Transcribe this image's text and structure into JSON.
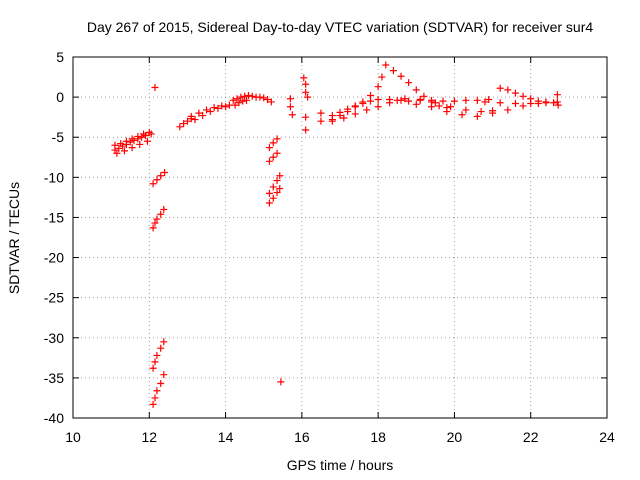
{
  "chart_data": {
    "type": "scatter",
    "title": "Day 267 of 2015, Sidereal Day-to-day VTEC variation (SDTVAR) for receiver sur4",
    "xlabel": "GPS time / hours",
    "ylabel": "SDTVAR / TECUs",
    "xlim": [
      10,
      24
    ],
    "ylim": [
      -40,
      5
    ],
    "xticks": [
      10,
      12,
      14,
      16,
      18,
      20,
      22,
      24
    ],
    "yticks": [
      5,
      0,
      -5,
      -10,
      -15,
      -20,
      -25,
      -30,
      -35,
      -40
    ],
    "grid": true,
    "marker": "plus",
    "color": "#ff0000",
    "series": [
      {
        "points": [
          [
            11.1,
            -6.6
          ],
          [
            11.2,
            -6.4
          ],
          [
            11.3,
            -6.1
          ],
          [
            11.4,
            -5.9
          ],
          [
            11.5,
            -5.6
          ],
          [
            11.6,
            -5.4
          ],
          [
            11.7,
            -5.2
          ],
          [
            11.8,
            -5.0
          ],
          [
            11.9,
            -4.8
          ],
          [
            12.05,
            -4.6
          ],
          [
            11.1,
            -6.0
          ],
          [
            11.25,
            -5.8
          ],
          [
            11.4,
            -5.5
          ],
          [
            11.55,
            -5.2
          ],
          [
            11.7,
            -4.9
          ],
          [
            11.85,
            -4.6
          ],
          [
            12.0,
            -4.4
          ],
          [
            11.15,
            -7.0
          ],
          [
            11.35,
            -6.7
          ],
          [
            11.55,
            -6.3
          ],
          [
            11.75,
            -5.9
          ],
          [
            11.95,
            -5.5
          ],
          [
            12.15,
            1.2
          ],
          [
            12.1,
            -10.8
          ],
          [
            12.2,
            -10.3
          ],
          [
            12.3,
            -9.8
          ],
          [
            12.4,
            -9.4
          ],
          [
            12.1,
            -16.3
          ],
          [
            12.15,
            -15.7
          ],
          [
            12.2,
            -15.2
          ],
          [
            12.3,
            -14.6
          ],
          [
            12.38,
            -14.0
          ],
          [
            12.1,
            -33.8
          ],
          [
            12.15,
            -33.0
          ],
          [
            12.2,
            -32.2
          ],
          [
            12.3,
            -31.3
          ],
          [
            12.38,
            -30.5
          ],
          [
            12.1,
            -38.3
          ],
          [
            12.15,
            -37.5
          ],
          [
            12.2,
            -36.6
          ],
          [
            12.3,
            -35.7
          ],
          [
            12.38,
            -34.6
          ],
          [
            12.8,
            -3.7
          ],
          [
            12.9,
            -3.3
          ],
          [
            13.0,
            -3.0
          ],
          [
            13.1,
            -2.7
          ],
          [
            13.1,
            -2.4
          ],
          [
            13.3,
            -2.0
          ],
          [
            13.5,
            -1.6
          ],
          [
            13.7,
            -1.3
          ],
          [
            13.9,
            -1.1
          ],
          [
            14.1,
            -1.0
          ],
          [
            13.2,
            -2.8
          ],
          [
            13.4,
            -2.3
          ],
          [
            13.6,
            -1.8
          ],
          [
            13.8,
            -1.4
          ],
          [
            14.0,
            -1.2
          ],
          [
            14.2,
            -0.4
          ],
          [
            14.3,
            -0.2
          ],
          [
            14.4,
            0.0
          ],
          [
            14.5,
            0.1
          ],
          [
            14.6,
            0.2
          ],
          [
            14.7,
            0.1
          ],
          [
            14.8,
            0.0
          ],
          [
            14.9,
            0.0
          ],
          [
            15.0,
            -0.1
          ],
          [
            15.1,
            -0.3
          ],
          [
            15.2,
            -0.6
          ],
          [
            14.25,
            -1.0
          ],
          [
            14.35,
            -0.7
          ],
          [
            14.45,
            -0.5
          ],
          [
            14.55,
            -0.4
          ],
          [
            15.15,
            -6.3
          ],
          [
            15.25,
            -5.7
          ],
          [
            15.35,
            -5.2
          ],
          [
            15.15,
            -8.0
          ],
          [
            15.25,
            -7.5
          ],
          [
            15.35,
            -7.0
          ],
          [
            15.15,
            -12.0
          ],
          [
            15.25,
            -11.2
          ],
          [
            15.35,
            -10.4
          ],
          [
            15.42,
            -9.8
          ],
          [
            15.15,
            -13.2
          ],
          [
            15.25,
            -12.6
          ],
          [
            15.35,
            -11.9
          ],
          [
            15.42,
            -11.4
          ],
          [
            15.45,
            -35.5
          ],
          [
            15.7,
            -0.2
          ],
          [
            15.7,
            -1.2
          ],
          [
            15.75,
            -2.2
          ],
          [
            16.05,
            2.4
          ],
          [
            16.1,
            1.6
          ],
          [
            16.1,
            0.6
          ],
          [
            16.15,
            0.0
          ],
          [
            16.1,
            -2.5
          ],
          [
            16.1,
            -4.1
          ],
          [
            16.5,
            -2.0
          ],
          [
            16.5,
            -3.0
          ],
          [
            16.8,
            -2.8
          ],
          [
            17.0,
            -2.3
          ],
          [
            17.2,
            -1.8
          ],
          [
            17.4,
            -1.2
          ],
          [
            17.6,
            -0.6
          ],
          [
            17.8,
            0.2
          ],
          [
            18.0,
            1.3
          ],
          [
            18.1,
            2.5
          ],
          [
            16.8,
            -2.3
          ],
          [
            17.0,
            -1.9
          ],
          [
            17.2,
            -1.5
          ],
          [
            17.4,
            -1.1
          ],
          [
            17.6,
            -0.8
          ],
          [
            17.8,
            -0.5
          ],
          [
            18.0,
            -0.3
          ],
          [
            16.8,
            -3.0
          ],
          [
            17.1,
            -2.6
          ],
          [
            17.4,
            -2.1
          ],
          [
            17.7,
            -1.6
          ],
          [
            18.0,
            -1.2
          ],
          [
            18.3,
            -0.7
          ],
          [
            18.6,
            -0.4
          ],
          [
            18.2,
            4.0
          ],
          [
            18.4,
            3.3
          ],
          [
            18.6,
            2.6
          ],
          [
            18.8,
            1.8
          ],
          [
            19.0,
            0.9
          ],
          [
            19.2,
            0.1
          ],
          [
            19.4,
            -0.6
          ],
          [
            19.6,
            -1.1
          ],
          [
            19.8,
            -1.3
          ],
          [
            18.5,
            -0.4
          ],
          [
            18.8,
            -0.5
          ],
          [
            19.1,
            -0.4
          ],
          [
            19.4,
            -0.4
          ],
          [
            19.7,
            -0.5
          ],
          [
            20.0,
            -0.5
          ],
          [
            20.3,
            -0.4
          ],
          [
            20.6,
            -0.4
          ],
          [
            20.9,
            -0.3
          ],
          [
            18.3,
            -0.3
          ],
          [
            18.7,
            -0.2
          ],
          [
            19.1,
            -0.3
          ],
          [
            19.5,
            -0.7
          ],
          [
            19.9,
            -1.2
          ],
          [
            20.3,
            -1.6
          ],
          [
            20.7,
            -1.8
          ],
          [
            21.0,
            -1.7
          ],
          [
            19.0,
            -0.9
          ],
          [
            19.4,
            -1.2
          ],
          [
            19.8,
            -1.8
          ],
          [
            20.2,
            -2.2
          ],
          [
            20.6,
            -2.4
          ],
          [
            21.0,
            -2.0
          ],
          [
            21.4,
            -1.6
          ],
          [
            21.8,
            -1.1
          ],
          [
            22.2,
            -0.8
          ],
          [
            21.2,
            1.1
          ],
          [
            21.4,
            0.9
          ],
          [
            21.6,
            0.5
          ],
          [
            21.8,
            0.1
          ],
          [
            22.0,
            -0.2
          ],
          [
            22.2,
            -0.5
          ],
          [
            22.4,
            -0.6
          ],
          [
            22.6,
            -0.7
          ],
          [
            20.8,
            -0.6
          ],
          [
            21.2,
            -0.7
          ],
          [
            21.6,
            -0.8
          ],
          [
            22.0,
            -0.8
          ],
          [
            22.4,
            -0.7
          ],
          [
            22.7,
            -0.6
          ],
          [
            22.7,
            0.3
          ],
          [
            22.72,
            -1.0
          ]
        ]
      }
    ]
  }
}
